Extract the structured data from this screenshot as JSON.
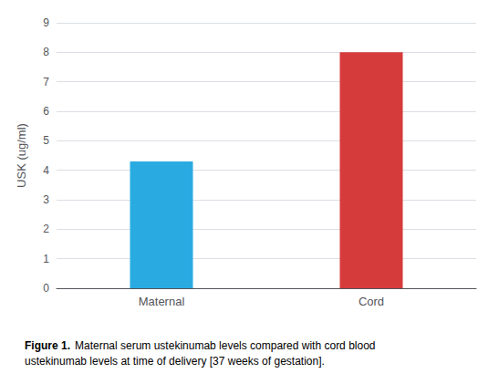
{
  "chart_data": {
    "type": "bar",
    "title": "Figure 1.",
    "subtitle": "Maternal serum ustekinumab levels compared with cord blood\nustekinumab levels at time of delivery [37 weeks of gestation].",
    "categories": [
      "Maternal",
      "Cord"
    ],
    "values": [
      4.3,
      8.0
    ],
    "colors": [
      "#29ABE2",
      "#D63B3B"
    ],
    "ylabel": "USK (ug/ml)",
    "ylim": [
      0,
      9
    ],
    "yticks": [
      0,
      1,
      2,
      3,
      4,
      5,
      6,
      7,
      8,
      9
    ],
    "grid": true
  }
}
